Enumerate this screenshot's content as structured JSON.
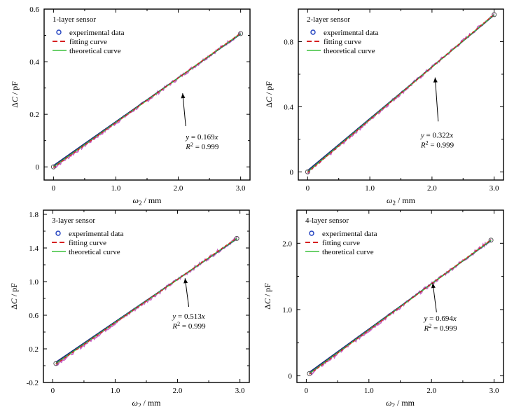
{
  "axis_labels": {
    "x_symbol": "ω",
    "x_sub": "2",
    "x_unit": " / mm",
    "y_prefix": "Δ",
    "y_symbol": "C",
    "y_unit": " / pF"
  },
  "legend": {
    "experimental": "experimental data",
    "fitting": "fitting curve",
    "theoretical": "theoretical curve"
  },
  "colors": {
    "experimental": "#1f3fbf",
    "fitting": "#d62020",
    "theoretical": "#3cc03c",
    "wiggle": "#c04cc0",
    "blue_line": "#1a237e"
  },
  "chart_data": [
    {
      "type": "scatter",
      "title": "1-layer sensor",
      "xlabel": "ω2 / mm",
      "ylabel": "ΔC / pF",
      "xlim": [
        -0.15,
        3.15
      ],
      "ylim": [
        -0.05,
        0.6
      ],
      "xticks": [
        0,
        1.0,
        2.0,
        3.0
      ],
      "xtick_labels": [
        "0",
        "1.0",
        "2.0",
        "3.0"
      ],
      "yticks": [
        0,
        0.2,
        0.4,
        0.6
      ],
      "ytick_labels": [
        "0",
        "0.2",
        "0.4",
        "0.6"
      ],
      "slope": 0.169,
      "x_range": [
        0,
        3.0
      ],
      "equation": "y = 0.169x",
      "equation_parts": [
        "y",
        " = 0.169",
        "x"
      ],
      "r2_parts": [
        "R",
        "2",
        " = 0.999"
      ],
      "r2": 0.999,
      "arrow": {
        "from": [
          2.12,
          0.155
        ],
        "to": [
          2.07,
          0.28
        ]
      },
      "ann_pos": [
        2.12,
        0.105
      ],
      "legend_pos": "top-left",
      "grid": false
    },
    {
      "type": "scatter",
      "title": "2-layer sensor",
      "xlabel": "ω2 / mm",
      "ylabel": "ΔC / pF",
      "xlim": [
        -0.15,
        3.15
      ],
      "ylim": [
        -0.05,
        1.0
      ],
      "xticks": [
        0,
        1.0,
        2.0,
        3.0
      ],
      "xtick_labels": [
        "0",
        "1.0",
        "2.0",
        "3.0"
      ],
      "yticks": [
        0,
        0.4,
        0.8
      ],
      "ytick_labels": [
        "0",
        "0.4",
        "0.8"
      ],
      "slope": 0.322,
      "x_range": [
        0,
        3.0
      ],
      "equation": "y = 0.322x",
      "equation_parts": [
        "y",
        " = 0.322",
        "x"
      ],
      "r2_parts": [
        "R",
        "2",
        " = 0.999"
      ],
      "r2": 0.999,
      "arrow": {
        "from": [
          2.1,
          0.31
        ],
        "to": [
          2.05,
          0.58
        ]
      },
      "ann_pos": [
        1.82,
        0.21
      ],
      "legend_pos": "top-left",
      "grid": false
    },
    {
      "type": "scatter",
      "title": "3-layer sensor",
      "xlabel": "ω2 / mm",
      "ylabel": "ΔC / pF",
      "xlim": [
        -0.15,
        3.15
      ],
      "ylim": [
        -0.2,
        1.85
      ],
      "xticks": [
        0,
        1.0,
        2.0,
        3.0
      ],
      "xtick_labels": [
        "0",
        "1.0",
        "2.0",
        "3.0"
      ],
      "yticks": [
        -0.2,
        0.2,
        0.6,
        1.0,
        1.4,
        1.8
      ],
      "ytick_labels": [
        "-0.2",
        "0.2",
        "0.6",
        "1.0",
        "1.4",
        "1.8"
      ],
      "slope": 0.513,
      "x_range": [
        0.05,
        2.95
      ],
      "equation": "y = 0.513x",
      "equation_parts": [
        "y",
        " = 0.513",
        "x"
      ],
      "r2_parts": [
        "R",
        "2",
        " = 0.999"
      ],
      "r2": 0.999,
      "arrow": {
        "from": [
          2.18,
          0.7
        ],
        "to": [
          2.12,
          1.04
        ]
      },
      "ann_pos": [
        1.92,
        0.56
      ],
      "legend_pos": "top-left",
      "grid": false
    },
    {
      "type": "scatter",
      "title": "4-layer sensor",
      "xlabel": "ω2 / mm",
      "ylabel": "ΔC / pF",
      "xlim": [
        -0.15,
        3.15
      ],
      "ylim": [
        -0.1,
        2.5
      ],
      "xticks": [
        0,
        1.0,
        2.0,
        3.0
      ],
      "xtick_labels": [
        "0",
        "1.0",
        "2.0",
        "3.0"
      ],
      "yticks": [
        0,
        1.0,
        2.0
      ],
      "ytick_labels": [
        "0",
        "1.0",
        "2.0"
      ],
      "slope": 0.694,
      "x_range": [
        0.05,
        2.95
      ],
      "equation": "y = 0.694x",
      "equation_parts": [
        "y",
        " = 0.694",
        "x"
      ],
      "r2_parts": [
        "R",
        "2",
        " = 0.999"
      ],
      "r2": 0.999,
      "arrow": {
        "from": [
          2.08,
          0.96
        ],
        "to": [
          2.02,
          1.4
        ]
      },
      "ann_pos": [
        1.88,
        0.83
      ],
      "legend_pos": "top-left",
      "grid": false
    }
  ]
}
